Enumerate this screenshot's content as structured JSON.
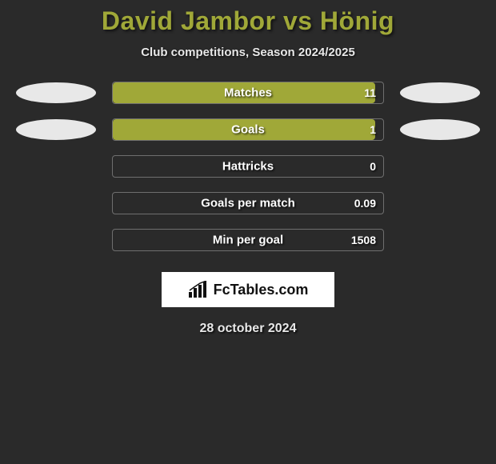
{
  "title": "David Jambor vs Hönig",
  "subtitle": "Club competitions, Season 2024/2025",
  "date": "28 october 2024",
  "logo_text": "FcTables.com",
  "colors": {
    "title": "#a0a838",
    "bar_fill": "#a0a838",
    "bar_border": "rgba(180,180,180,0.5)",
    "background": "#2a2a2a",
    "text_light": "#e8e8e8",
    "oval": "#e8e8e8"
  },
  "stats": [
    {
      "label": "Matches",
      "value": "11",
      "fill_pct": 97,
      "show_ovals": true
    },
    {
      "label": "Goals",
      "value": "1",
      "fill_pct": 97,
      "show_ovals": true
    },
    {
      "label": "Hattricks",
      "value": "0",
      "fill_pct": 0,
      "show_ovals": false
    },
    {
      "label": "Goals per match",
      "value": "0.09",
      "fill_pct": 0,
      "show_ovals": false
    },
    {
      "label": "Min per goal",
      "value": "1508",
      "fill_pct": 0,
      "show_ovals": false
    }
  ]
}
